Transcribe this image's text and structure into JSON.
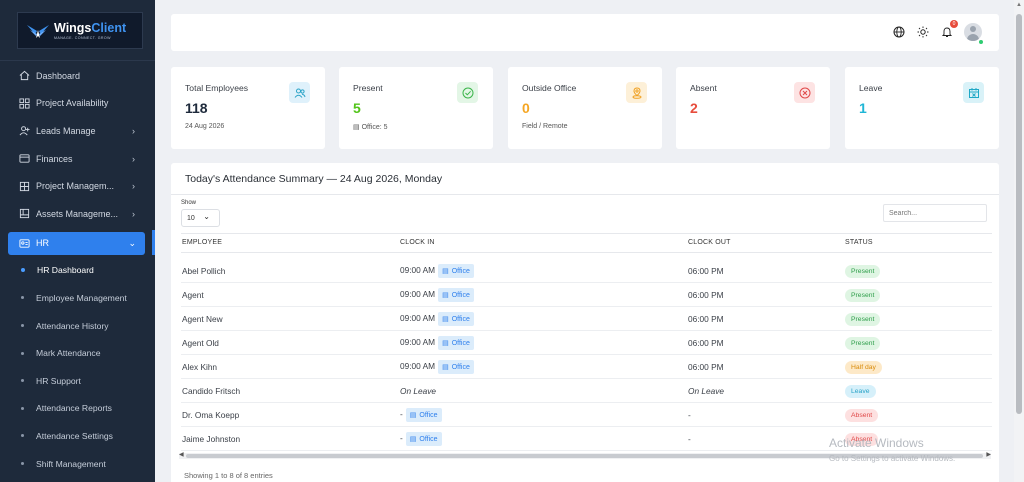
{
  "brand": {
    "name_part1": "Wings",
    "name_part2": "Client",
    "tagline": "MANAGE. CONNECT. GROW",
    "accent_color": "#2f80ed"
  },
  "sidebar": {
    "items": [
      {
        "label": "Dashboard",
        "icon": "home-icon",
        "chevron": ""
      },
      {
        "label": "Project Availability",
        "icon": "grid-icon",
        "chevron": ""
      },
      {
        "label": "Leads Manage",
        "icon": "user-plus-icon",
        "chevron": "›"
      },
      {
        "label": "Finances",
        "icon": "wallet-icon",
        "chevron": "›"
      },
      {
        "label": "Project Managem...",
        "icon": "project-icon",
        "chevron": "›"
      },
      {
        "label": "Assets Manageme...",
        "icon": "assets-icon",
        "chevron": "›"
      }
    ],
    "active": {
      "label": "HR",
      "icon": "id-card-icon",
      "chevron": "⌄"
    },
    "subitems": [
      {
        "label": "HR Dashboard"
      },
      {
        "label": "Employee Management"
      },
      {
        "label": "Attendance History"
      },
      {
        "label": "Mark Attendance"
      },
      {
        "label": "HR Support"
      },
      {
        "label": "Attendance Reports"
      },
      {
        "label": "Attendance Settings"
      },
      {
        "label": "Shift Management"
      }
    ]
  },
  "topbar": {
    "notification_count": "0"
  },
  "stats": [
    {
      "label": "Total Employees",
      "value": "118",
      "sub": "24 Aug 2026",
      "icon": "users-icon",
      "color": "#1e2a3b",
      "icon_bg": "#dff1fb",
      "icon_color": "#2aa3c7"
    },
    {
      "label": "Present",
      "value": "5",
      "sub": "Office: 5",
      "icon": "check-circle-icon",
      "color": "#52c41a",
      "icon_bg": "#e3f6e6",
      "icon_color": "#3bb54a"
    },
    {
      "label": "Outside Office",
      "value": "0",
      "sub": "Field / Remote",
      "icon": "location-icon",
      "color": "#f5a623",
      "icon_bg": "#fdf0d8",
      "icon_color": "#f0a020"
    },
    {
      "label": "Absent",
      "value": "2",
      "sub": "",
      "icon": "x-circle-icon",
      "color": "#e74c3c",
      "icon_bg": "#fde3e3",
      "icon_color": "#e04848"
    },
    {
      "label": "Leave",
      "value": "1",
      "sub": "",
      "icon": "calendar-icon",
      "color": "#1fb6d6",
      "icon_bg": "#d9f2f8",
      "icon_color": "#1fa8c6"
    }
  ],
  "attendance": {
    "title": "Today's Attendance Summary — 24 Aug 2026, Monday",
    "show_label": "Show",
    "page_size": "10",
    "search_placeholder": "Search...",
    "columns": [
      "EMPLOYEE",
      "CLOCK IN",
      "CLOCK OUT",
      "STATUS"
    ],
    "rows": [
      {
        "employee": "Abel Pollich",
        "clock_in": "09:00 AM",
        "location": "Office",
        "clock_out": "06:00 PM",
        "status": "Present",
        "status_class": "st-present",
        "italic": false
      },
      {
        "employee": "Agent",
        "clock_in": "09:00 AM",
        "location": "Office",
        "clock_out": "06:00 PM",
        "status": "Present",
        "status_class": "st-present",
        "italic": false
      },
      {
        "employee": "Agent New",
        "clock_in": "09:00 AM",
        "location": "Office",
        "clock_out": "06:00 PM",
        "status": "Present",
        "status_class": "st-present",
        "italic": false
      },
      {
        "employee": "Agent Old",
        "clock_in": "09:00 AM",
        "location": "Office",
        "clock_out": "06:00 PM",
        "status": "Present",
        "status_class": "st-present",
        "italic": false
      },
      {
        "employee": "Alex Kihn",
        "clock_in": "09:00 AM",
        "location": "Office",
        "clock_out": "06:00 PM",
        "status": "Half day",
        "status_class": "st-half",
        "italic": false
      },
      {
        "employee": "Candido Fritsch",
        "clock_in": "On Leave",
        "location": "",
        "clock_out": "On Leave",
        "status": "Leave",
        "status_class": "st-leave",
        "italic": true
      },
      {
        "employee": "Dr. Oma Koepp",
        "clock_in": "-",
        "location": "Office",
        "clock_out": "-",
        "status": "Absent",
        "status_class": "st-absent",
        "italic": false
      },
      {
        "employee": "Jaime Johnston",
        "clock_in": "-",
        "location": "Office",
        "clock_out": "-",
        "status": "Absent",
        "status_class": "st-absent",
        "italic": false
      }
    ],
    "footer": "Showing 1 to 8 of 8 entries"
  },
  "watermark": {
    "line1": "Activate Windows",
    "line2": "Go to Settings to activate Windows."
  }
}
